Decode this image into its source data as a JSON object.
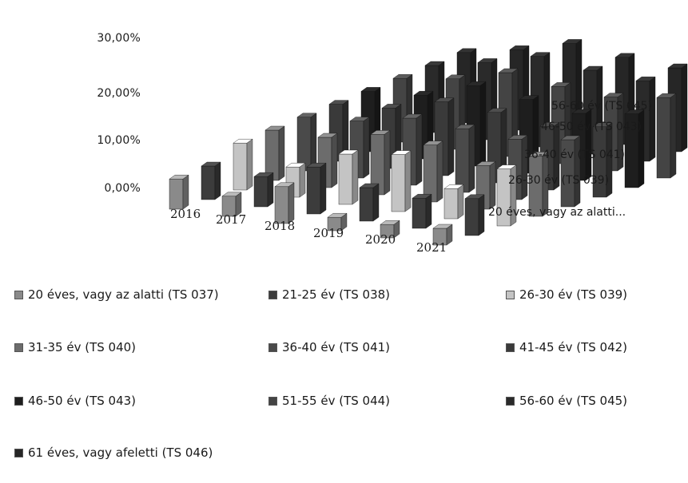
{
  "chart_data": {
    "type": "bar",
    "subtype": "3d-column",
    "categories": [
      "2016",
      "2017",
      "2018",
      "2019",
      "2020",
      "2021"
    ],
    "depth_labels": [
      "20 éves, vagy az alatti...",
      "26-30 év (TS 039)",
      "36-40 év (TS 041)",
      "46-50 év (TS 043)",
      "56-60 év (TS 045)"
    ],
    "y_ticks": [
      "30,00%",
      "20,00%",
      "10,00%",
      "0,00%"
    ],
    "ylim": [
      0,
      30
    ],
    "series": [
      {
        "name": "20 éves, vagy az alatti (TS 037)",
        "color": "#8a8a8a",
        "values": [
          9,
          6,
          11,
          4,
          4,
          5
        ]
      },
      {
        "name": "21-25 év (TS 038)",
        "color": "#3c3c3c",
        "values": [
          10,
          9,
          14,
          10,
          9,
          11
        ]
      },
      {
        "name": "26-30 év (TS 039)",
        "color": "#c4c4c4",
        "values": [
          14,
          9,
          15,
          17,
          9,
          17
        ]
      },
      {
        "name": "31-35 év (TS 040)",
        "color": "#6c6c6c",
        "values": [
          15,
          15,
          18,
          17,
          13,
          18
        ]
      },
      {
        "name": "36-40 év (TS 041)",
        "color": "#4a4a4a",
        "values": [
          16,
          17,
          20,
          19,
          18,
          20
        ]
      },
      {
        "name": "41-45 év (TS 042)",
        "color": "#3a3a3a",
        "values": [
          17,
          18,
          22,
          21,
          19,
          21
        ]
      },
      {
        "name": "46-50 év (TS 043)",
        "color": "#1e1e1e",
        "values": [
          18,
          19,
          24,
          22,
          20,
          22
        ]
      },
      {
        "name": "51-55 év (TS 044)",
        "color": "#444444",
        "values": [
          19,
          21,
          25,
          23,
          22,
          24
        ]
      },
      {
        "name": "56-60 év (TS 045)",
        "color": "#2a2a2a",
        "values": [
          20,
          23,
          27,
          25,
          24,
          26
        ]
      },
      {
        "name": "61 éves, vagy afeletti (TS 046)",
        "color": "#262626",
        "values": [
          21,
          24,
          28,
          26,
          25,
          33
        ]
      }
    ],
    "legend_position": "bottom",
    "grid": false
  }
}
